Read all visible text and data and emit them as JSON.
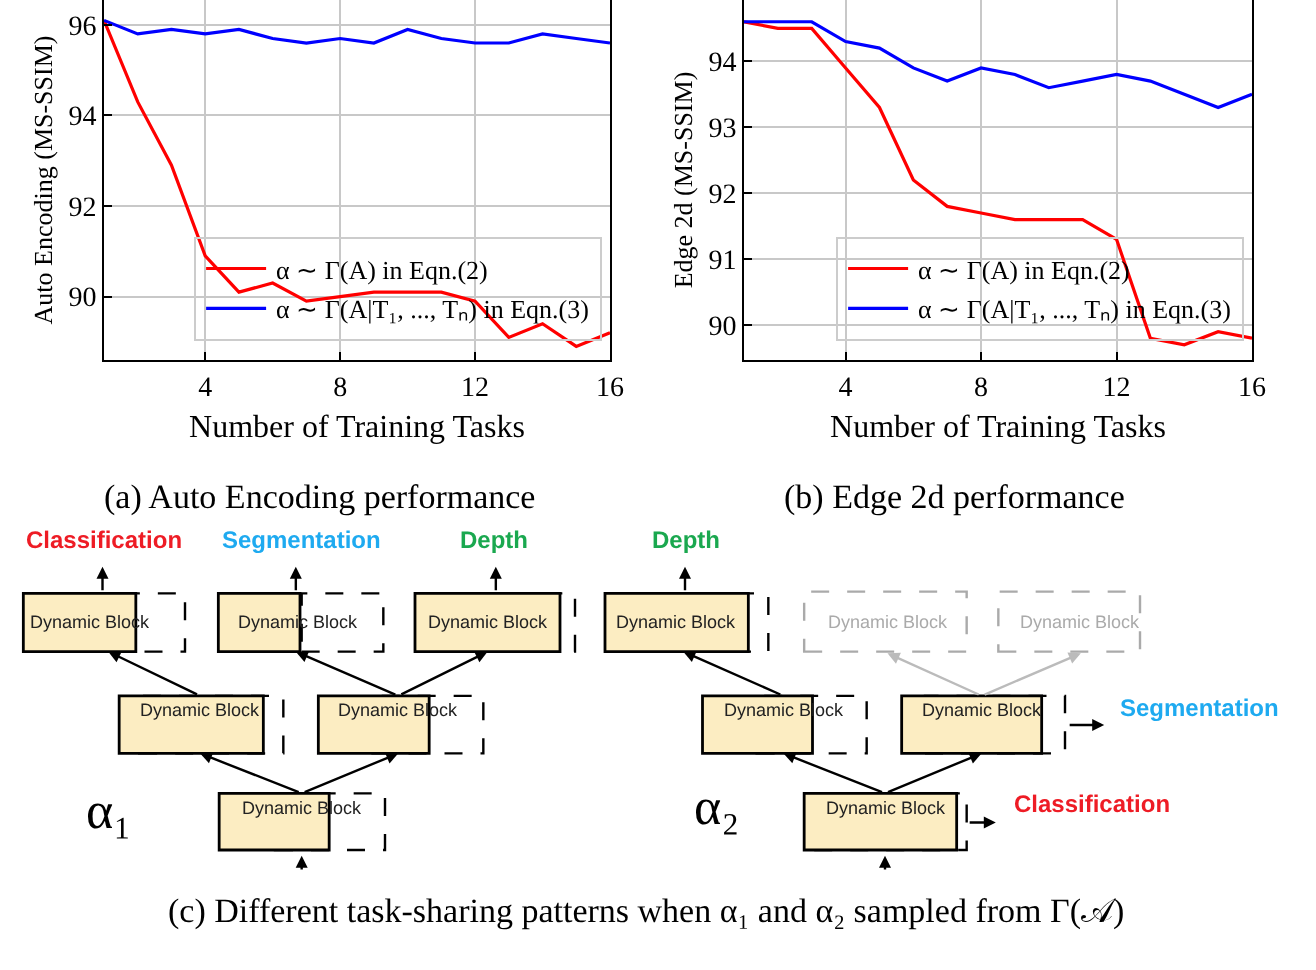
{
  "chart_data": [
    {
      "type": "line",
      "xlabel": "Number of Training Tasks",
      "ylabel": "Auto Encoding (MS-SSIM)",
      "x": [
        1,
        2,
        3,
        4,
        5,
        6,
        7,
        8,
        9,
        10,
        11,
        12,
        13,
        14,
        15,
        16
      ],
      "xlim": [
        1,
        16
      ],
      "xticks": [
        4,
        8,
        12,
        16
      ],
      "ylim": [
        88.6,
        96.55
      ],
      "yticks": [
        90,
        92,
        94,
        96
      ],
      "grid": true,
      "legend": "bottom right",
      "marker": "none",
      "line_style": "solid",
      "series": [
        {
          "name": "α ∼ Γ(A) in Eqn.(2)",
          "color": "#ff0000",
          "values": [
            96.1,
            94.3,
            92.9,
            90.9,
            90.1,
            90.3,
            89.9,
            90.0,
            90.1,
            90.1,
            90.1,
            89.9,
            89.1,
            89.4,
            88.9,
            89.2
          ]
        },
        {
          "name": "α ∼ Γ(A|T₁, ..., Tₙ) in Eqn.(3)",
          "color": "#0000ff",
          "values": [
            96.1,
            95.8,
            95.9,
            95.8,
            95.9,
            95.7,
            95.6,
            95.7,
            95.6,
            95.9,
            95.7,
            95.6,
            95.6,
            95.8,
            95.7,
            95.6
          ]
        }
      ],
      "annotations": [
        "(a) Auto Encoding performance"
      ]
    },
    {
      "type": "line",
      "xlabel": "Number of Training Tasks",
      "ylabel": "Edge 2d (MS-SSIM)",
      "x": [
        1,
        2,
        3,
        4,
        5,
        6,
        7,
        8,
        9,
        10,
        11,
        12,
        13,
        14,
        15,
        16
      ],
      "xlim": [
        1,
        16
      ],
      "xticks": [
        4,
        8,
        12,
        16
      ],
      "ylim": [
        89.47,
        94.93
      ],
      "yticks": [
        90,
        91,
        92,
        93,
        94
      ],
      "grid": true,
      "legend": "bottom right",
      "marker": "none",
      "line_style": "solid",
      "series": [
        {
          "name": "α ∼ Γ(A) in Eqn.(2)",
          "color": "#ff0000",
          "values": [
            94.6,
            94.5,
            94.5,
            93.9,
            93.3,
            92.2,
            91.8,
            91.7,
            91.6,
            91.6,
            91.6,
            91.3,
            89.8,
            89.7,
            89.9,
            89.8
          ]
        },
        {
          "name": "α ∼ Γ(A|T₁, ..., Tₙ) in Eqn.(3)",
          "color": "#0000ff",
          "values": [
            94.6,
            94.6,
            94.6,
            94.3,
            94.2,
            93.9,
            93.7,
            93.9,
            93.8,
            93.6,
            93.7,
            93.8,
            93.7,
            93.5,
            93.3,
            93.5
          ]
        }
      ],
      "annotations": [
        "(b) Edge 2d performance"
      ]
    },
    {
      "type": "other",
      "annotations": [
        "Classification",
        "Segmentation",
        "Depth",
        "Depth",
        "Segmentation",
        "Classification",
        "α₁",
        "α₂",
        "Dynamic Block",
        "Dynamic Block",
        "Dynamic Block",
        "Dynamic Block",
        "Dynamic Block",
        "Dynamic Block",
        "Dynamic Block",
        "Dynamic Block",
        "Dynamic Block",
        "Dynamic Block",
        "Dynamic Block",
        "Dynamic Block",
        "(c) Different task-sharing patterns when α₁ and α₂ sampled from Γ(𝒜)"
      ],
      "colors": [
        "#ee1c25",
        "#1eaaf0",
        "#1aa84f",
        "#1aa84f",
        "#1eaaf0",
        "#ee1c25",
        "#000000",
        "#000000",
        "#222222",
        "#222222",
        "#222222",
        "#222222",
        "#222222",
        "#222222",
        "#222222",
        "#222222",
        "#222222",
        "#222222",
        "#aaaaaa",
        "#aaaaaa",
        "#000000"
      ]
    }
  ]
}
